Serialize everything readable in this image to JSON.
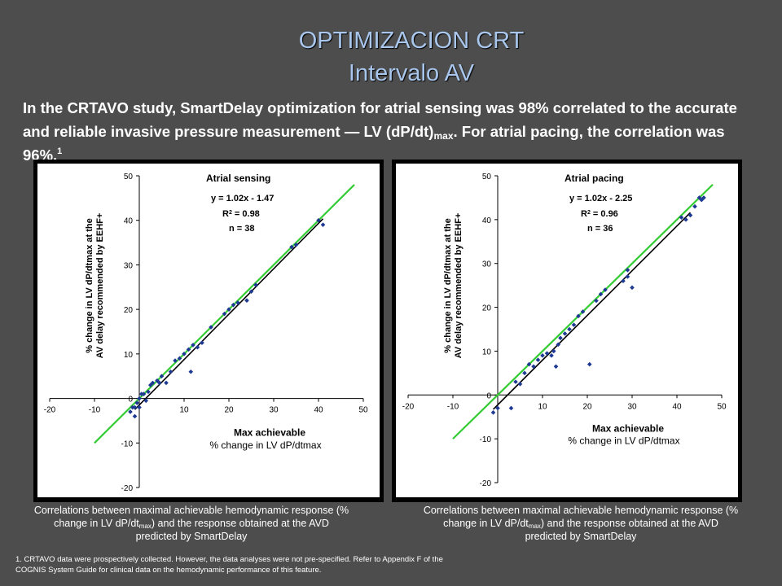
{
  "slide": {
    "title_line1": "OPTIMIZACION CRT",
    "title_line2": "Intervalo AV",
    "intro_part1": "In the CRTAVO study, SmartDelay optimization for atrial sensing was 98% correlated to the accurate and reliable invasive pressure measurement — LV (dP/dt)",
    "intro_sub": "max",
    "intro_part2": ". For atrial pacing, the correlation was 96%.",
    "intro_sup": "1",
    "caption_part1": "Correlations between maximal achievable hemodynamic response (% change in LV dP/dt",
    "caption_sub": "max",
    "caption_part2": ") and the response obtained at the AVD predicted by SmartDelay",
    "footnote_line1": "1.   CRTAVO data were prospectively collected. However, the data analyses were not pre-specified. Refer to Appendix F of the",
    "footnote_line2": "COGNIS System Guide for clinical data on the hemodynamic performance of this feature."
  },
  "colors": {
    "identity_line": "#33cc33",
    "regression_line": "#000000",
    "points": "#1f3a93",
    "plot_bg": "#ffffff",
    "title": "#a9c6ec"
  },
  "chart_data": [
    {
      "type": "scatter",
      "title": "Atrial sensing",
      "equation": "y = 1.02x - 1.47",
      "r2_prefix": "R",
      "r2_sup": "2",
      "r2_suffix": " = 0.98",
      "n_label": "n = 38",
      "xlabel_line1": "Max achievable",
      "xlabel_line2": "% change in LV dP/dtmax",
      "ylabel_line1": "% change in LV dP/dtmax at the",
      "ylabel_line2": "AV delay recommended by EEHF+",
      "xlim": [
        -20,
        50
      ],
      "ylim": [
        -20,
        50
      ],
      "xticks": [
        "-20",
        "-10",
        "0",
        "10",
        "20",
        "30",
        "40",
        "50"
      ],
      "yticks": [
        "-20",
        "-10",
        "0",
        "10",
        "20",
        "30",
        "40",
        "50"
      ],
      "grid": false,
      "identity_line": {
        "x": [
          -10,
          48
        ],
        "y": [
          -10,
          48
        ]
      },
      "regression_line": {
        "slope": 1.02,
        "intercept": -1.47,
        "x": [
          -1,
          41
        ]
      },
      "points": [
        [
          -2,
          -3
        ],
        [
          -1.5,
          -2
        ],
        [
          -1,
          -4
        ],
        [
          -1,
          -2
        ],
        [
          -0.5,
          -1
        ],
        [
          0,
          0
        ],
        [
          0,
          -2
        ],
        [
          0.5,
          1
        ],
        [
          1,
          1
        ],
        [
          1.5,
          -0.5
        ],
        [
          2,
          1.5
        ],
        [
          2.5,
          3
        ],
        [
          3,
          3.5
        ],
        [
          4,
          4
        ],
        [
          4.5,
          3.5
        ],
        [
          5,
          5
        ],
        [
          6,
          3.5
        ],
        [
          7,
          6
        ],
        [
          8,
          8.5
        ],
        [
          9,
          9
        ],
        [
          10,
          10
        ],
        [
          11,
          11
        ],
        [
          11.5,
          6
        ],
        [
          12,
          12
        ],
        [
          13,
          11.5
        ],
        [
          14,
          12.5
        ],
        [
          16,
          16
        ],
        [
          19,
          19
        ],
        [
          20,
          20
        ],
        [
          21,
          21
        ],
        [
          22,
          21.5
        ],
        [
          24,
          22
        ],
        [
          25,
          24
        ],
        [
          26,
          25.5
        ],
        [
          34,
          34
        ],
        [
          35,
          34.5
        ],
        [
          40,
          40
        ],
        [
          41,
          39
        ]
      ]
    },
    {
      "type": "scatter",
      "title": "Atrial pacing",
      "equation": "y = 1.02x - 2.25",
      "r2_prefix": "R",
      "r2_sup": "2",
      "r2_suffix": " = 0.96",
      "n_label": "n = 36",
      "xlabel_line1": "Max achievable",
      "xlabel_line2": "% change in LV dP/dtmax",
      "ylabel_line1": "% change in LV dP/dtmax at the",
      "ylabel_line2": "AV delay recommended by EEHF+",
      "xlim": [
        -20,
        50
      ],
      "ylim": [
        -20,
        50
      ],
      "xticks": [
        "-20",
        "-10",
        "0",
        "10",
        "20",
        "30",
        "40",
        "50"
      ],
      "yticks": [
        "-20",
        "-10",
        "0",
        "10",
        "20",
        "30",
        "40",
        "50"
      ],
      "grid": false,
      "identity_line": {
        "x": [
          -10,
          48
        ],
        "y": [
          -10,
          48
        ]
      },
      "regression_line": {
        "slope": 1.02,
        "intercept": -2.25,
        "x": [
          -1,
          43
        ]
      },
      "points": [
        [
          -1,
          -4
        ],
        [
          0,
          -3
        ],
        [
          3,
          -3
        ],
        [
          4,
          3
        ],
        [
          5,
          2.5
        ],
        [
          6,
          5
        ],
        [
          7,
          7
        ],
        [
          8,
          6.5
        ],
        [
          9,
          8
        ],
        [
          10,
          9
        ],
        [
          11,
          9.5
        ],
        [
          12,
          9
        ],
        [
          12.5,
          10
        ],
        [
          13,
          6.5
        ],
        [
          13.5,
          11.5
        ],
        [
          14,
          13
        ],
        [
          15,
          14
        ],
        [
          16,
          15
        ],
        [
          17,
          16
        ],
        [
          18,
          18
        ],
        [
          19,
          19
        ],
        [
          20.5,
          7
        ],
        [
          22,
          21.5
        ],
        [
          23,
          23
        ],
        [
          24,
          24
        ],
        [
          28,
          26
        ],
        [
          29,
          27
        ],
        [
          29,
          28.5
        ],
        [
          30,
          24.5
        ],
        [
          41,
          40.5
        ],
        [
          42,
          40
        ],
        [
          43,
          41
        ],
        [
          44,
          43
        ],
        [
          45,
          45
        ],
        [
          45.5,
          44.5
        ],
        [
          46,
          45
        ]
      ]
    }
  ]
}
